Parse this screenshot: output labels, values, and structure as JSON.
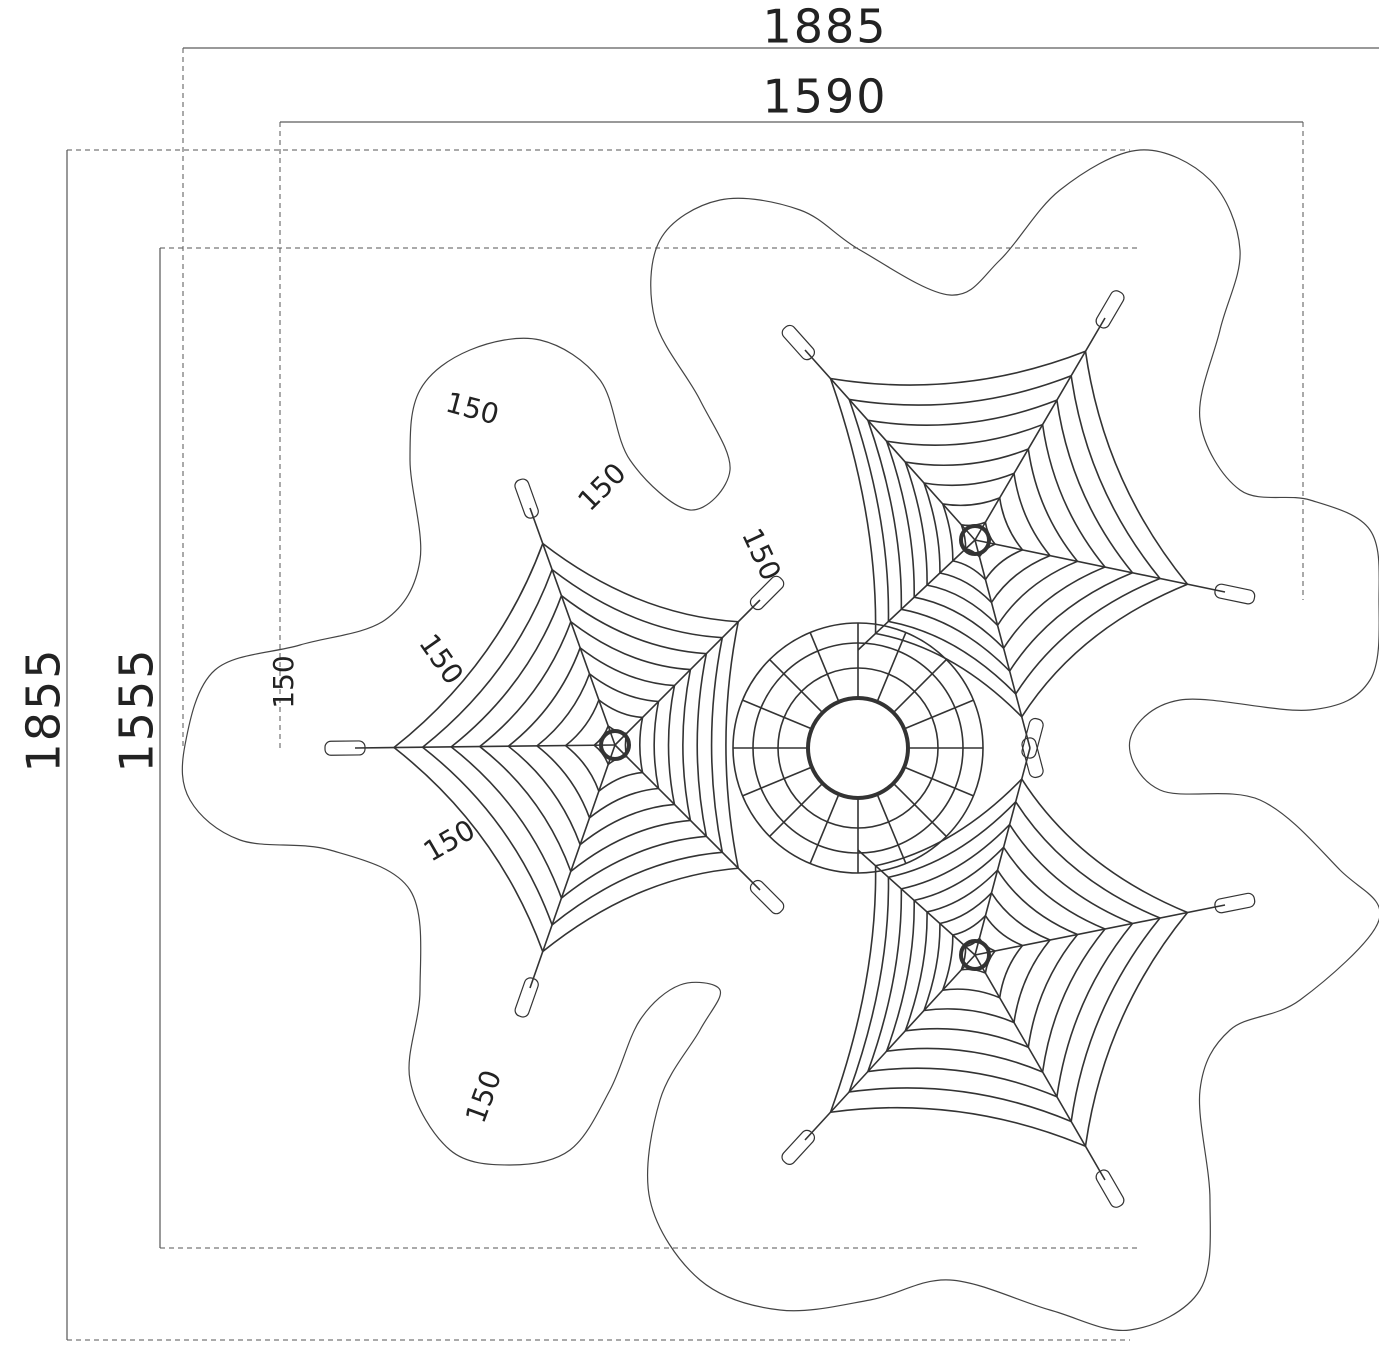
{
  "dimensions": {
    "overall_width": "1885",
    "net_width": "1590",
    "overall_depth": "1855",
    "net_depth": "1555"
  },
  "clearances": [
    "150",
    "150",
    "150",
    "150",
    "150",
    "150",
    "150"
  ]
}
